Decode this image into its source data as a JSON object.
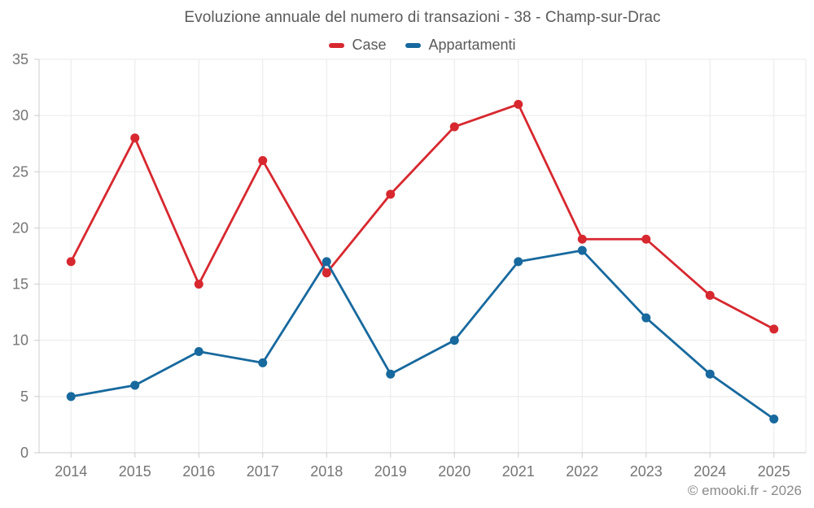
{
  "title": "Evoluzione annuale del numero di transazioni - 38 - Champ-sur-Drac",
  "footer": "© emooki.fr - 2026",
  "legend": {
    "items": [
      {
        "label": "Case",
        "color": "#d7282f"
      },
      {
        "label": "Appartamenti",
        "color": "#17699e"
      }
    ]
  },
  "chart_data": {
    "type": "line",
    "title": "Evoluzione annuale del numero di transazioni - 38 - Champ-sur-Drac",
    "x": [
      "2014",
      "2015",
      "2016",
      "2017",
      "2018",
      "2019",
      "2020",
      "2021",
      "2022",
      "2023",
      "2024",
      "2025"
    ],
    "series": [
      {
        "name": "Case",
        "color": "#d7282f",
        "values": [
          17,
          28,
          15,
          26,
          16,
          23,
          29,
          31,
          19,
          19,
          14,
          11
        ]
      },
      {
        "name": "Appartamenti",
        "color": "#17699e",
        "values": [
          5,
          6,
          9,
          8,
          17,
          7,
          10,
          17,
          18,
          12,
          7,
          3
        ]
      }
    ],
    "xlabel": "",
    "ylabel": "",
    "ylim": [
      0,
      35
    ],
    "yticks": [
      0,
      5,
      10,
      15,
      20,
      25,
      30,
      35
    ],
    "grid": true,
    "legend_position": "top"
  },
  "style_colors": {
    "grid": "#e9e9e9",
    "axis": "#cccccc",
    "tick_label": "#757575",
    "title_text": "#5a5a5a",
    "footer_text": "#8a8a8a"
  }
}
